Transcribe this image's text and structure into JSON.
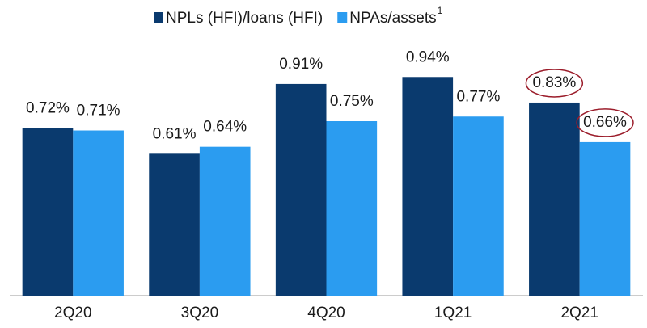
{
  "chart_data": {
    "type": "bar",
    "categories": [
      "2Q20",
      "3Q20",
      "4Q20",
      "1Q21",
      "2Q21"
    ],
    "series": [
      {
        "name": "NPLs (HFI)/loans (HFI)",
        "color": "#0a3a6e",
        "values": [
          0.72,
          0.61,
          0.91,
          0.94,
          0.83
        ],
        "value_labels": [
          "0.72%",
          "0.61%",
          "0.91%",
          "0.94%",
          "0.83%"
        ]
      },
      {
        "name": "NPAs/assets",
        "footnote": "1",
        "color": "#2b9cf0",
        "values": [
          0.71,
          0.64,
          0.75,
          0.77,
          0.66
        ],
        "value_labels": [
          "0.71%",
          "0.64%",
          "0.75%",
          "0.77%",
          "0.66%"
        ]
      }
    ],
    "ylim": [
      0,
      1
    ],
    "grid": false
  }
}
